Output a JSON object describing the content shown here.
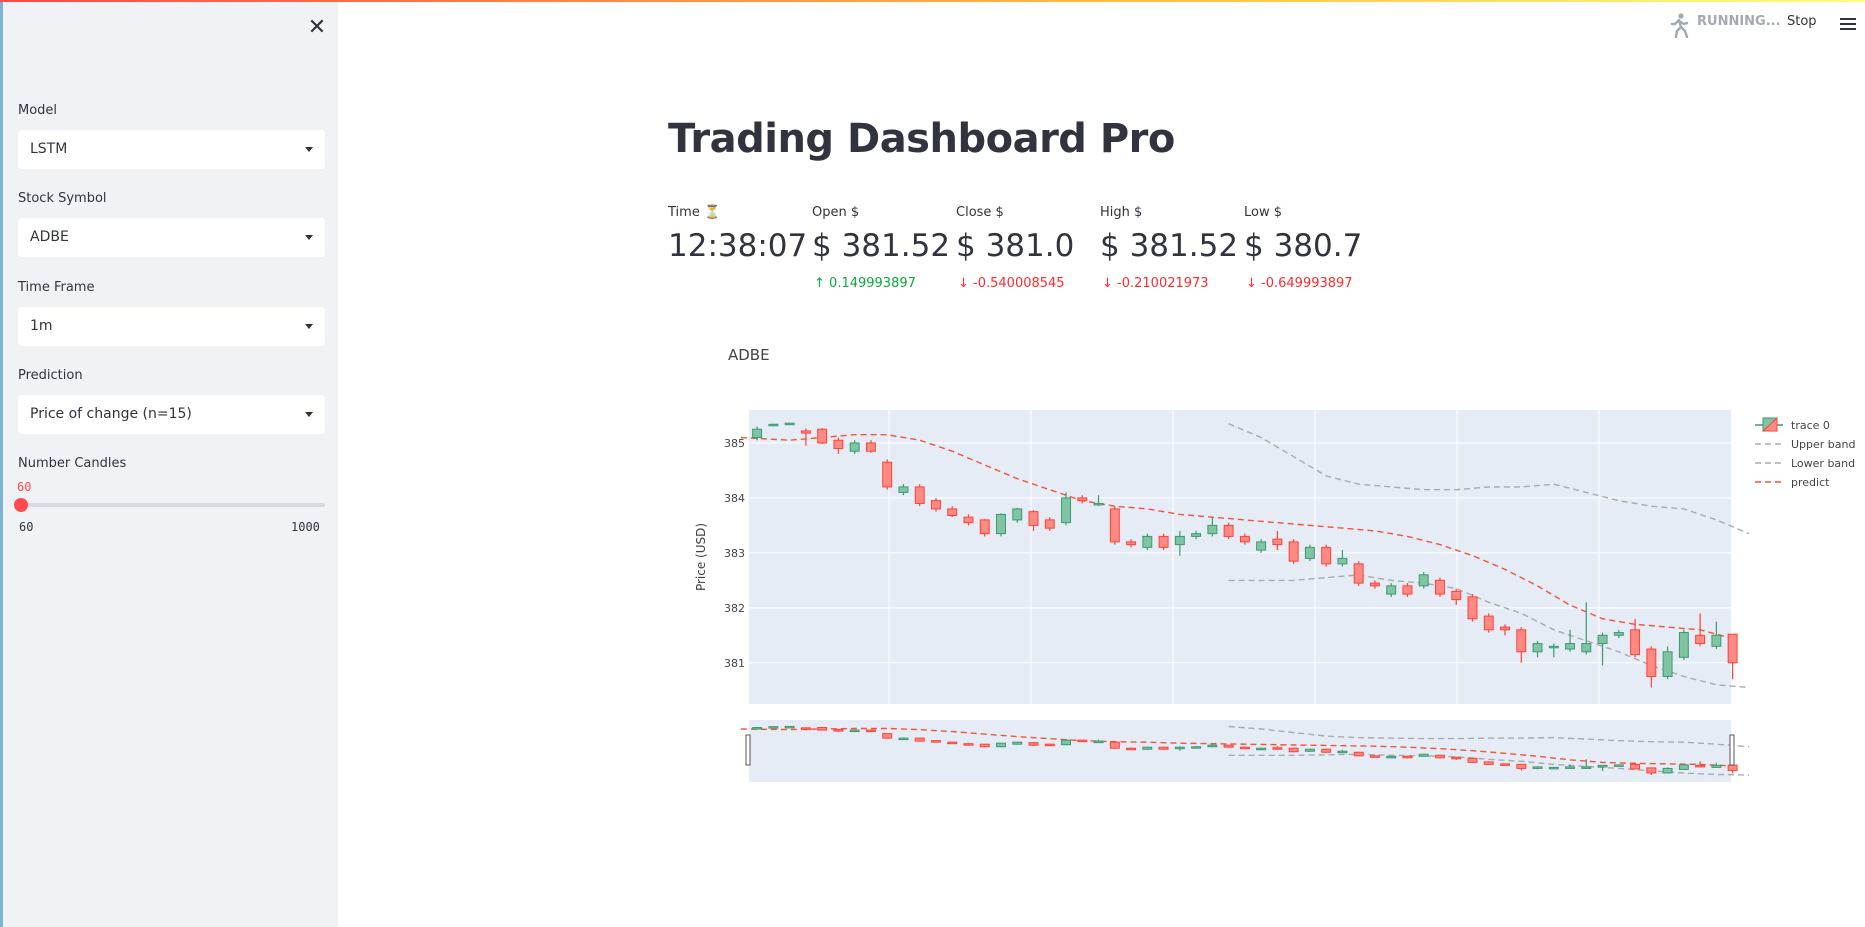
{
  "sidebar": {
    "close_icon": "close-icon",
    "model": {
      "label": "Model",
      "value": "LSTM"
    },
    "symbol": {
      "label": "Stock Symbol",
      "value": "ADBE"
    },
    "timeframe": {
      "label": "Time Frame",
      "value": "1m"
    },
    "prediction": {
      "label": "Prediction",
      "value": "Price of change (n=15)"
    },
    "candles": {
      "label": "Number Candles",
      "value": "60",
      "min": "60",
      "max": "1000",
      "fraction": 0
    }
  },
  "header": {
    "running_icon": "running-icon",
    "status": "RUNNING...",
    "stop_label": "Stop",
    "menu_icon": "hamburger-menu-icon"
  },
  "page": {
    "title": "Trading Dashboard Pro"
  },
  "metrics": [
    {
      "label": "Time ⏳",
      "value": "12:38:07",
      "delta": ""
    },
    {
      "label": "Open $",
      "value": "$ 381.52",
      "delta": "0.149993897",
      "dir": "up"
    },
    {
      "label": "Close $",
      "value": "$ 381.0",
      "delta": "-0.540008545",
      "dir": "down"
    },
    {
      "label": "High $",
      "value": "$ 381.52",
      "delta": "-0.210021973",
      "dir": "down"
    },
    {
      "label": "Low $",
      "value": "$ 380.7",
      "delta": "-0.649993897",
      "dir": "down"
    }
  ],
  "colors": {
    "increasing": "#3d9970",
    "decreasing": "#ff4136",
    "band": "#aaaaaa",
    "predict": "#ef553b",
    "plot_bg": "#e5ecf6"
  },
  "chart_data": {
    "type": "candlestick",
    "title": "ADBE",
    "ylabel": "Price (USD)",
    "ylim": [
      380.25,
      385.6
    ],
    "yticks": [
      "381",
      "382",
      "383",
      "384",
      "385"
    ],
    "x_count": 60,
    "legend_placement": "right",
    "legend": [
      "trace 0",
      "Upper band",
      "Lower band",
      "predict"
    ],
    "candles": [
      {
        "o": 385.1,
        "c": 385.25,
        "h": 385.3,
        "l": 385.05
      },
      {
        "o": 385.33,
        "c": 385.34,
        "h": 385.35,
        "l": 385.32
      },
      {
        "o": 385.35,
        "c": 385.36,
        "h": 385.37,
        "l": 385.34
      },
      {
        "o": 385.22,
        "c": 385.18,
        "h": 385.26,
        "l": 384.95
      },
      {
        "o": 385.25,
        "c": 385.0,
        "h": 385.27,
        "l": 384.98
      },
      {
        "o": 385.05,
        "c": 384.9,
        "h": 385.1,
        "l": 384.8
      },
      {
        "o": 384.85,
        "c": 385.0,
        "h": 385.05,
        "l": 384.8
      },
      {
        "o": 385.0,
        "c": 384.85,
        "h": 385.05,
        "l": 384.82
      },
      {
        "o": 384.65,
        "c": 384.2,
        "h": 384.7,
        "l": 384.15
      },
      {
        "o": 384.1,
        "c": 384.2,
        "h": 384.25,
        "l": 384.05
      },
      {
        "o": 384.2,
        "c": 383.9,
        "h": 384.25,
        "l": 383.85
      },
      {
        "o": 383.95,
        "c": 383.8,
        "h": 384.0,
        "l": 383.75
      },
      {
        "o": 383.8,
        "c": 383.68,
        "h": 383.85,
        "l": 383.65
      },
      {
        "o": 383.65,
        "c": 383.55,
        "h": 383.7,
        "l": 383.5
      },
      {
        "o": 383.6,
        "c": 383.35,
        "h": 383.62,
        "l": 383.3
      },
      {
        "o": 383.35,
        "c": 383.7,
        "h": 383.72,
        "l": 383.3
      },
      {
        "o": 383.6,
        "c": 383.8,
        "h": 383.82,
        "l": 383.55
      },
      {
        "o": 383.75,
        "c": 383.5,
        "h": 383.78,
        "l": 383.4
      },
      {
        "o": 383.6,
        "c": 383.45,
        "h": 383.65,
        "l": 383.4
      },
      {
        "o": 383.55,
        "c": 384.0,
        "h": 384.1,
        "l": 383.5
      },
      {
        "o": 384.0,
        "c": 383.95,
        "h": 384.05,
        "l": 383.9
      },
      {
        "o": 383.9,
        "c": 383.9,
        "h": 384.05,
        "l": 383.85
      },
      {
        "o": 383.8,
        "c": 383.2,
        "h": 383.85,
        "l": 383.15
      },
      {
        "o": 383.2,
        "c": 383.15,
        "h": 383.25,
        "l": 383.1
      },
      {
        "o": 383.1,
        "c": 383.3,
        "h": 383.35,
        "l": 383.05
      },
      {
        "o": 383.3,
        "c": 383.1,
        "h": 383.35,
        "l": 383.05
      },
      {
        "o": 383.15,
        "c": 383.3,
        "h": 383.4,
        "l": 382.95
      },
      {
        "o": 383.3,
        "c": 383.35,
        "h": 383.4,
        "l": 383.25
      },
      {
        "o": 383.35,
        "c": 383.5,
        "h": 383.65,
        "l": 383.3
      },
      {
        "o": 383.5,
        "c": 383.3,
        "h": 383.55,
        "l": 383.25
      },
      {
        "o": 383.3,
        "c": 383.2,
        "h": 383.35,
        "l": 383.15
      },
      {
        "o": 383.05,
        "c": 383.2,
        "h": 383.25,
        "l": 383.0
      },
      {
        "o": 383.25,
        "c": 383.15,
        "h": 383.4,
        "l": 383.05
      },
      {
        "o": 383.2,
        "c": 382.85,
        "h": 383.25,
        "l": 382.8
      },
      {
        "o": 382.9,
        "c": 383.1,
        "h": 383.15,
        "l": 382.85
      },
      {
        "o": 383.1,
        "c": 382.8,
        "h": 383.15,
        "l": 382.75
      },
      {
        "o": 382.8,
        "c": 382.9,
        "h": 383.05,
        "l": 382.75
      },
      {
        "o": 382.8,
        "c": 382.45,
        "h": 382.85,
        "l": 382.4
      },
      {
        "o": 382.45,
        "c": 382.4,
        "h": 382.5,
        "l": 382.35
      },
      {
        "o": 382.25,
        "c": 382.4,
        "h": 382.45,
        "l": 382.2
      },
      {
        "o": 382.4,
        "c": 382.25,
        "h": 382.45,
        "l": 382.2
      },
      {
        "o": 382.4,
        "c": 382.6,
        "h": 382.65,
        "l": 382.35
      },
      {
        "o": 382.5,
        "c": 382.25,
        "h": 382.55,
        "l": 382.2
      },
      {
        "o": 382.3,
        "c": 382.15,
        "h": 382.35,
        "l": 382.05
      },
      {
        "o": 382.2,
        "c": 381.8,
        "h": 382.25,
        "l": 381.75
      },
      {
        "o": 381.85,
        "c": 381.6,
        "h": 381.9,
        "l": 381.55
      },
      {
        "o": 381.65,
        "c": 381.6,
        "h": 381.7,
        "l": 381.5
      },
      {
        "o": 381.6,
        "c": 381.2,
        "h": 381.65,
        "l": 381.0
      },
      {
        "o": 381.2,
        "c": 381.35,
        "h": 381.4,
        "l": 381.1
      },
      {
        "o": 381.3,
        "c": 381.3,
        "h": 381.35,
        "l": 381.1
      },
      {
        "o": 381.25,
        "c": 381.35,
        "h": 381.6,
        "l": 381.2
      },
      {
        "o": 381.2,
        "c": 381.35,
        "h": 382.1,
        "l": 381.15
      },
      {
        "o": 381.35,
        "c": 381.5,
        "h": 381.55,
        "l": 380.95
      },
      {
        "o": 381.5,
        "c": 381.55,
        "h": 381.6,
        "l": 381.45
      },
      {
        "o": 381.6,
        "c": 381.15,
        "h": 381.8,
        "l": 381.1
      },
      {
        "o": 381.25,
        "c": 380.75,
        "h": 381.3,
        "l": 380.55
      },
      {
        "o": 380.75,
        "c": 381.2,
        "h": 381.3,
        "l": 380.7
      },
      {
        "o": 381.1,
        "c": 381.55,
        "h": 381.6,
        "l": 381.05
      },
      {
        "o": 381.5,
        "c": 381.35,
        "h": 381.9,
        "l": 381.3
      },
      {
        "o": 381.3,
        "c": 381.5,
        "h": 381.75,
        "l": 381.25
      },
      {
        "o": 381.52,
        "c": 381.0,
        "h": 381.52,
        "l": 380.7
      }
    ],
    "upper_band": [
      [
        29,
        385.35
      ],
      [
        31,
        385.1
      ],
      [
        33,
        384.75
      ],
      [
        35,
        384.4
      ],
      [
        37,
        384.25
      ],
      [
        39,
        384.2
      ],
      [
        41,
        384.15
      ],
      [
        43,
        384.15
      ],
      [
        45,
        384.2
      ],
      [
        47,
        384.2
      ],
      [
        49,
        384.25
      ],
      [
        51,
        384.1
      ],
      [
        53,
        383.95
      ],
      [
        55,
        383.85
      ],
      [
        57,
        383.8
      ],
      [
        59,
        383.6
      ],
      [
        61,
        383.35
      ]
    ],
    "lower_band": [
      [
        29,
        382.5
      ],
      [
        31,
        382.5
      ],
      [
        33,
        382.5
      ],
      [
        35,
        382.55
      ],
      [
        37,
        382.6
      ],
      [
        39,
        382.5
      ],
      [
        41,
        382.45
      ],
      [
        43,
        382.35
      ],
      [
        45,
        382.1
      ],
      [
        47,
        381.9
      ],
      [
        49,
        381.6
      ],
      [
        51,
        381.4
      ],
      [
        53,
        381.2
      ],
      [
        55,
        380.95
      ],
      [
        57,
        380.75
      ],
      [
        59,
        380.6
      ],
      [
        61,
        380.55
      ]
    ],
    "predict": [
      [
        -1,
        385.1
      ],
      [
        2,
        385.05
      ],
      [
        4,
        385.1
      ],
      [
        6,
        385.15
      ],
      [
        8,
        385.15
      ],
      [
        10,
        385.05
      ],
      [
        12,
        384.85
      ],
      [
        14,
        384.6
      ],
      [
        16,
        384.35
      ],
      [
        18,
        384.15
      ],
      [
        20,
        383.95
      ],
      [
        22,
        383.85
      ],
      [
        24,
        383.8
      ],
      [
        26,
        383.7
      ],
      [
        28,
        383.65
      ],
      [
        30,
        383.6
      ],
      [
        32,
        383.55
      ],
      [
        34,
        383.5
      ],
      [
        36,
        383.45
      ],
      [
        38,
        383.4
      ],
      [
        40,
        383.3
      ],
      [
        42,
        383.15
      ],
      [
        44,
        382.95
      ],
      [
        46,
        382.7
      ],
      [
        48,
        382.4
      ],
      [
        50,
        382.05
      ],
      [
        52,
        381.8
      ],
      [
        54,
        381.7
      ],
      [
        56,
        381.65
      ],
      [
        58,
        381.6
      ],
      [
        60,
        381.45
      ],
      [
        62,
        381.3
      ],
      [
        64,
        381.2
      ],
      [
        66,
        381.15
      ],
      [
        68,
        381.1
      ]
    ]
  }
}
